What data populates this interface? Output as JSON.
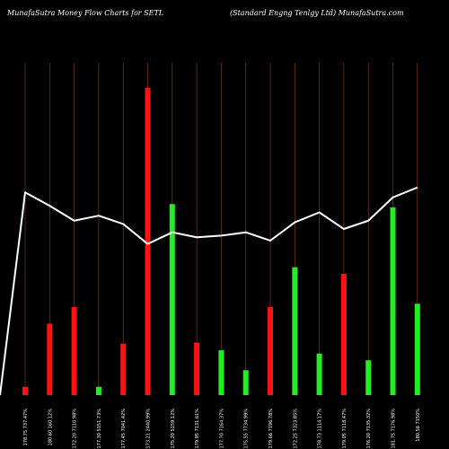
{
  "header": {
    "left": "MunafaSutra  Money Flow  Charts for SETL",
    "right": "(Standard Engng Tenlgy Ltd) MunafaSutra.com"
  },
  "colors": {
    "up": "#22ee22",
    "down": "#ff1111",
    "line": "#ffffff",
    "grid": "#8b4513",
    "background": "#000000"
  },
  "chart_data": {
    "type": "bar",
    "grid": true,
    "categories": [
      "178.75  737.47%",
      "180.60  160.12%",
      "172.20  7110.98%",
      "177.30  5151.73%",
      "177.45  7041.42%",
      "173.21  2440.99%",
      "175.20  5159.12%",
      "179.95  7131.61%",
      "177.70  7164.37%",
      "175.55  7734.99%",
      "179.66  7196.78%",
      "172.25  7323.85%",
      "178.73  1114.17%",
      "179.05  7118.47%",
      "176.20  7135.32%",
      "181.75  7176.98%",
      "180.56  7150%"
    ],
    "series": [
      {
        "kind": "bar",
        "direction": [
          "down",
          "down",
          "down",
          "up",
          "down",
          "down",
          "up",
          "down",
          "up",
          "up",
          "down",
          "up",
          "up",
          "down",
          "up",
          "up",
          "up"
        ],
        "values": [
          2.5,
          21.5,
          26.5,
          2.5,
          15.5,
          92.5,
          57.5,
          15.8,
          13.5,
          7.5,
          26.5,
          38.5,
          12.5,
          36.5,
          10.5,
          56.5,
          27.5
        ]
      },
      {
        "kind": "line",
        "values": [
          61,
          57,
          52.5,
          54,
          51.5,
          45.5,
          49,
          47.5,
          48,
          49,
          46.5,
          52,
          55,
          50,
          52.5,
          59.5,
          62.5
        ]
      }
    ],
    "ylim": [
      0,
      100
    ]
  }
}
